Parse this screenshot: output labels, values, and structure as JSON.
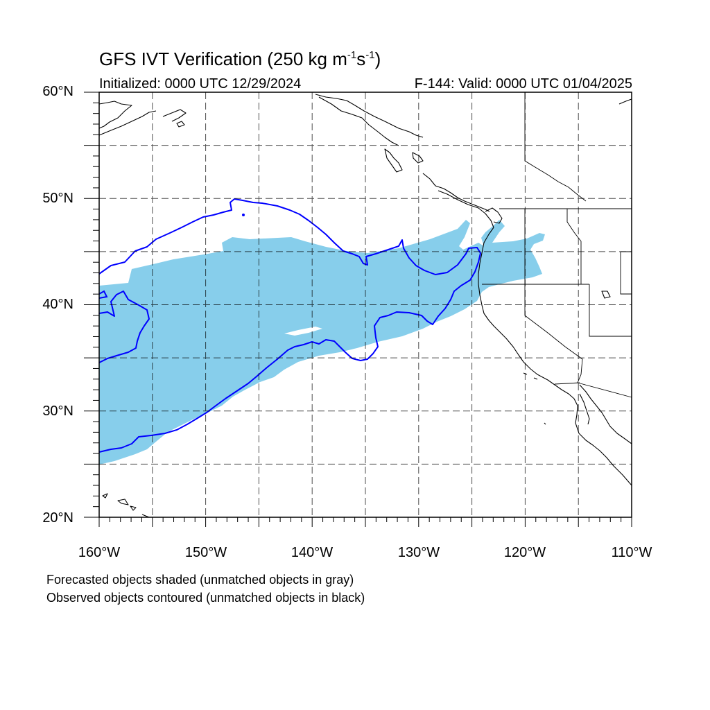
{
  "title": {
    "main": "GFS IVT Verification (250 kg m",
    "sup1": "-1",
    "mid": "s",
    "sup2": "-1",
    "end": ")"
  },
  "initialized": "Initialized: 0000 UTC 12/29/2024",
  "valid": "F-144: Valid: 0000 UTC 01/04/2025",
  "lat_labels": [
    "60°N",
    "50°N",
    "40°N",
    "30°N",
    "20°N"
  ],
  "lon_labels": [
    "160°W",
    "150°W",
    "140°W",
    "130°W",
    "120°W",
    "110°W"
  ],
  "notes": [
    "Forecasted objects shaded (unmatched objects in gray)",
    "Observed objects contoured (unmatched objects in black)"
  ],
  "colors": {
    "forecast_fill": "#87ceeb",
    "observed_contour": "#0000ff",
    "coastline": "#000000",
    "grid": "#000000"
  },
  "map_extent": {
    "lon": [
      -160,
      -110
    ],
    "lat": [
      20,
      60
    ]
  }
}
